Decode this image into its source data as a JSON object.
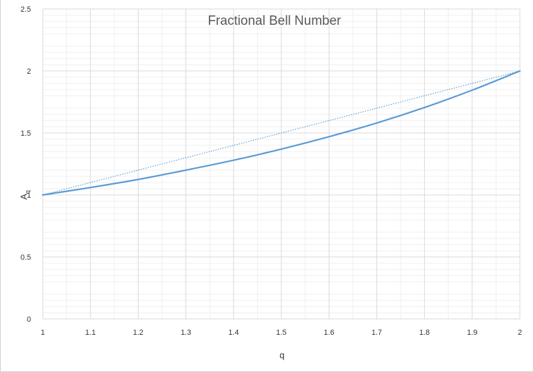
{
  "chart_data": {
    "type": "line",
    "title": "Fractional Bell Number",
    "xlabel": "q",
    "ylabel": "A",
    "ylabel_subscript": "q",
    "xlim": [
      1,
      2
    ],
    "ylim": [
      0,
      2.5
    ],
    "x_ticks": [
      "1",
      "1.1",
      "1.2",
      "1.3",
      "1.4",
      "1.5",
      "1.6",
      "1.7",
      "1.8",
      "1.9",
      "2"
    ],
    "y_ticks": [
      "0",
      "0.5",
      "1",
      "1.5",
      "2",
      "2.5"
    ],
    "grid": true,
    "legend": "none",
    "series": [
      {
        "style": "solid",
        "color": "#5b9bd5",
        "x": [
          1.0,
          1.1,
          1.2,
          1.3,
          1.4,
          1.5,
          1.6,
          1.7,
          1.8,
          1.9,
          2.0
        ],
        "y": [
          1.0,
          1.06,
          1.125,
          1.2,
          1.28,
          1.37,
          1.47,
          1.58,
          1.705,
          1.845,
          2.0
        ]
      },
      {
        "style": "dotted",
        "color": "#5b9bd5",
        "x": [
          1.0,
          2.0
        ],
        "y": [
          1.0,
          2.0
        ]
      }
    ]
  }
}
